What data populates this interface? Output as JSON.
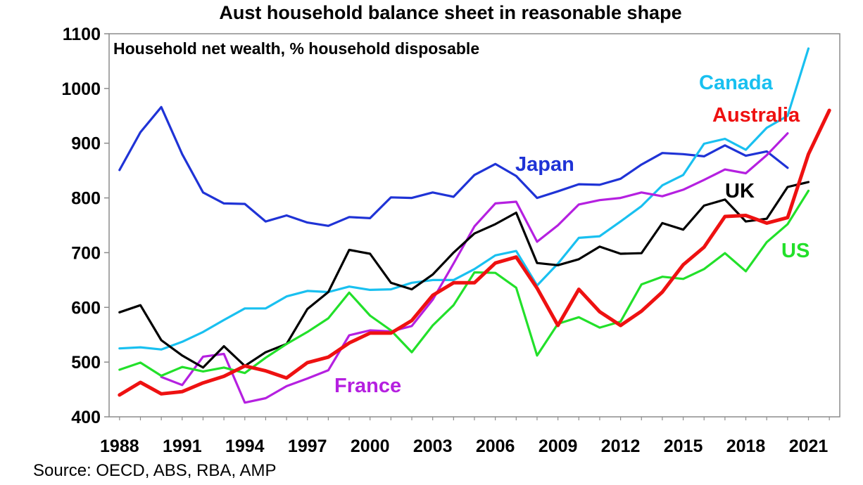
{
  "chart_data": {
    "type": "line",
    "title": "Aust household balance sheet in reasonable shape",
    "subtitle": "Household net wealth, % household disposable",
    "source": "Source: OECD, ABS, RBA, AMP",
    "xlabel": "",
    "ylabel": "",
    "xlim": [
      1987.5,
      2022.5
    ],
    "ylim": [
      400,
      1100
    ],
    "y_ticks": [
      400,
      500,
      600,
      700,
      800,
      900,
      1000,
      1100
    ],
    "x_ticks": [
      1988,
      1991,
      1994,
      1997,
      2000,
      2003,
      2006,
      2009,
      2012,
      2015,
      2018,
      2021
    ],
    "grid": false,
    "series": [
      {
        "name": "Japan",
        "color": "#1f33d6",
        "start_year": 1988,
        "values": [
          851,
          920,
          966,
          880,
          810,
          790,
          789,
          757,
          768,
          755,
          749,
          765,
          763,
          801,
          800,
          810,
          802,
          842,
          862,
          840,
          800,
          812,
          825,
          824,
          835,
          861,
          882,
          880,
          876,
          896,
          877,
          885,
          855
        ]
      },
      {
        "name": "Canada",
        "color": "#19c0f0",
        "start_year": 1988,
        "values": [
          525,
          527,
          523,
          537,
          555,
          577,
          598,
          598,
          620,
          630,
          628,
          638,
          632,
          633,
          645,
          650,
          650,
          670,
          695,
          703,
          640,
          680,
          727,
          730,
          757,
          785,
          823,
          842,
          899,
          908,
          888,
          928,
          950,
          1073
        ]
      },
      {
        "name": "Australia",
        "color": "#ee1111",
        "start_year": 1988,
        "values": [
          440,
          463,
          442,
          446,
          462,
          474,
          493,
          484,
          471,
          499,
          509,
          535,
          553,
          553,
          576,
          622,
          645,
          645,
          681,
          692,
          635,
          567,
          633,
          592,
          567,
          593,
          628,
          678,
          710,
          766,
          768,
          754,
          764,
          880,
          960
        ]
      },
      {
        "name": "UK",
        "color": "#000000",
        "start_year": 1988,
        "values": [
          591,
          604,
          540,
          512,
          490,
          529,
          493,
          518,
          533,
          597,
          628,
          705,
          698,
          645,
          633,
          660,
          700,
          735,
          752,
          773,
          681,
          677,
          688,
          711,
          698,
          699,
          754,
          742,
          786,
          797,
          757,
          762,
          820,
          829
        ]
      },
      {
        "name": "US",
        "color": "#22e02a",
        "start_year": 1988,
        "values": [
          486,
          499,
          475,
          491,
          483,
          490,
          480,
          508,
          533,
          555,
          580,
          627,
          585,
          558,
          518,
          567,
          604,
          664,
          663,
          636,
          512,
          570,
          582,
          563,
          574,
          642,
          656,
          652,
          670,
          699,
          666,
          719,
          752,
          813
        ]
      },
      {
        "name": "France",
        "color": "#b520e0",
        "start_year": 1990,
        "values": [
          473,
          458,
          510,
          515,
          426,
          434,
          456,
          470,
          485,
          549,
          558,
          556,
          566,
          614,
          680,
          748,
          790,
          793,
          720,
          750,
          788,
          796,
          800,
          810,
          803,
          815,
          833,
          852,
          845,
          878,
          918
        ]
      }
    ]
  }
}
